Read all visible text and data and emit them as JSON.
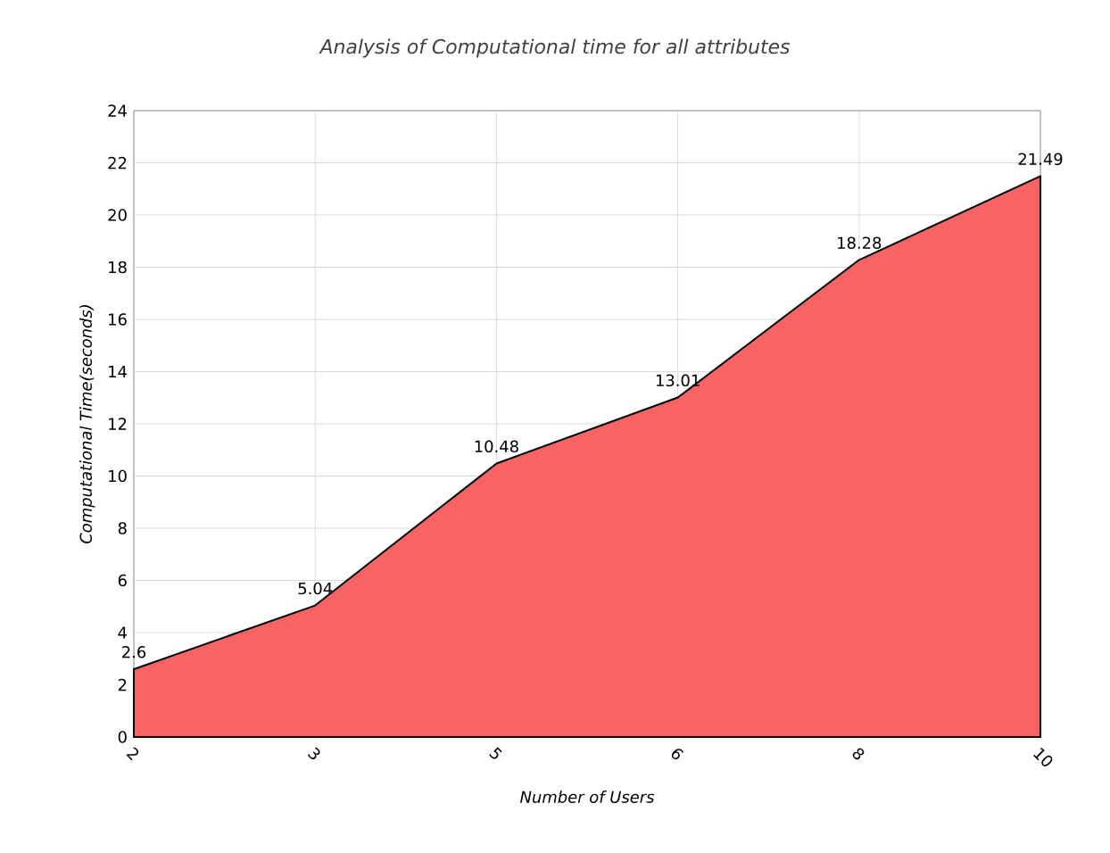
{
  "chart_data": {
    "type": "area",
    "title": "Analysis of Computational time for all attributes",
    "xlabel": "Number of Users",
    "ylabel": "Computational Time(seconds)",
    "categories": [
      "2",
      "3",
      "5",
      "6",
      "8",
      "10"
    ],
    "values": [
      2.6,
      5.04,
      10.48,
      13.01,
      18.28,
      21.49
    ],
    "color": "#f86464",
    "ylim": [
      0,
      24
    ],
    "yticks": [
      0,
      2,
      4,
      6,
      8,
      10,
      12,
      14,
      16,
      18,
      20,
      22,
      24
    ],
    "grid": true,
    "data_labels": true
  }
}
